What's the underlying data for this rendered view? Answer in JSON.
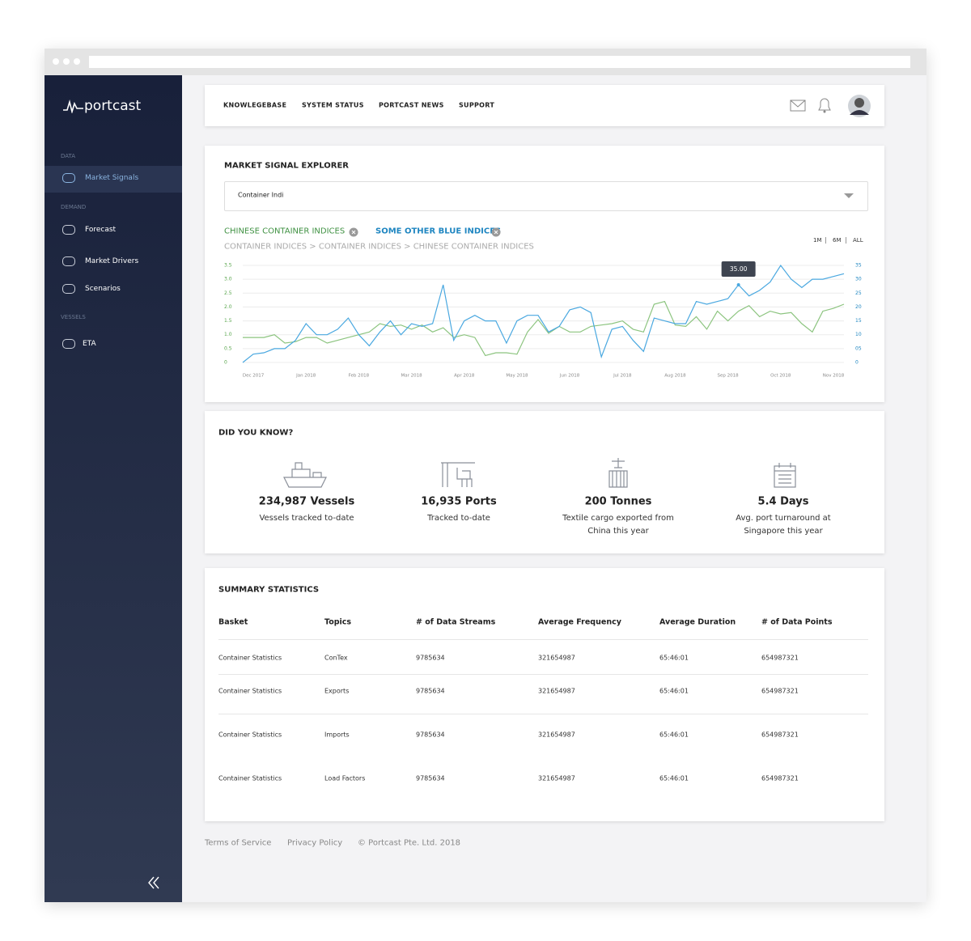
{
  "sidebar": {
    "logo": "portcast",
    "sections": [
      {
        "heading": "DATA",
        "items": [
          "Market Signals"
        ]
      },
      {
        "heading": "DEMAND",
        "items": [
          "Forecast",
          "Market Drivers",
          "Scenarios"
        ]
      },
      {
        "heading": "VESSELS",
        "items": [
          "ETA"
        ]
      }
    ]
  },
  "topnav": {
    "links": [
      "KNOWLEGEBASE",
      "SYSTEM STATUS",
      "PORTCAST NEWS",
      "SUPPORT"
    ]
  },
  "explorer": {
    "title": "MARKET SIGNAL EXPLORER",
    "search": "Container Indi",
    "breadcrumb": "CONTAINER INDICES > CONTAINER INDICES > CHINESE CONTAINER INDICES",
    "ranges": [
      "1M",
      "6M",
      "ALL"
    ]
  },
  "chart_data": {
    "type": "line",
    "tooltip": "35.00",
    "categories": [
      null,
      "Dec 2017",
      null,
      null,
      null,
      null,
      "Jan 2018",
      null,
      null,
      null,
      null,
      "Feb 2018",
      null,
      null,
      null,
      null,
      "Mar 2018",
      null,
      null,
      null,
      null,
      "Apr 2018",
      null,
      null,
      null,
      null,
      "May 2018",
      null,
      null,
      null,
      null,
      "Jun 2018",
      null,
      null,
      null,
      null,
      "Jul 2018",
      null,
      null,
      null,
      null,
      "Aug 2018",
      null,
      null,
      null,
      null,
      "Sep 2018",
      null,
      null,
      null,
      null,
      "Oct 2018",
      null,
      null,
      null,
      null,
      "Nov 2018",
      null
    ],
    "series": [
      {
        "name": "CHINESE CONTAINER INDICES",
        "color": "#8cc47f",
        "values": [
          0.9,
          0.9,
          0.9,
          1.0,
          0.7,
          0.75,
          0.9,
          0.9,
          0.7,
          0.8,
          0.9,
          1.0,
          1.1,
          1.4,
          1.3,
          1.35,
          1.2,
          1.35,
          1.1,
          1.25,
          0.9,
          1.0,
          0.9,
          0.25,
          0.35,
          0.35,
          0.3,
          1.1,
          1.55,
          1.05,
          1.3,
          1.1,
          1.1,
          1.3,
          1.35,
          1.4,
          1.5,
          1.2,
          1.1,
          2.1,
          2.2,
          1.35,
          1.3,
          1.65,
          1.2,
          1.85,
          1.5,
          1.85,
          2.05,
          1.65,
          1.85,
          1.75,
          1.8,
          1.4,
          1.1,
          1.85,
          1.95,
          2.1
        ]
      },
      {
        "name": "SOME OTHER BLUE INDICES",
        "color": "#4aa8e0",
        "axis": "y2",
        "values": [
          0,
          3,
          3.5,
          5,
          5,
          8,
          14,
          10,
          10,
          12,
          16,
          10,
          6,
          11,
          15,
          10,
          14,
          13,
          14,
          28,
          8,
          15,
          17,
          15,
          15,
          7,
          15,
          17,
          17,
          11,
          13,
          19,
          20,
          18,
          2,
          12,
          13,
          8,
          4,
          16,
          15,
          14,
          14,
          22,
          21,
          22,
          23,
          28,
          24,
          26,
          29,
          35,
          30,
          27,
          30,
          30,
          31,
          32
        ]
      }
    ],
    "ylim": [
      0,
      3.5
    ],
    "yticks": [
      0,
      {
        "value": 0.5,
        "label": "0.5"
      },
      {
        "value": 1,
        "label": "1.0"
      },
      {
        "value": 1.5,
        "label": "1.5"
      },
      {
        "value": 2,
        "label": "2.0"
      },
      {
        "value": 2.5,
        "label": "2.5"
      },
      {
        "value": 3,
        "label": "3.0"
      },
      {
        "value": 3.5,
        "label": "3.5"
      }
    ],
    "y2lim": [
      0,
      35
    ],
    "y2ticks": [
      0,
      {
        "value": 5,
        "label": "05"
      },
      10,
      15,
      20,
      25,
      30,
      35
    ],
    "grid": true
  },
  "did_you_know": {
    "title": "DID YOU KNOW?",
    "stats": [
      {
        "value": "234,987 Vessels",
        "caption": "Vessels tracked to-date"
      },
      {
        "value": "16,935 Ports",
        "caption": "Tracked to-date"
      },
      {
        "value": "200 Tonnes",
        "caption": "Textile cargo exported from China this year"
      },
      {
        "value": "5.4 Days",
        "caption": "Avg. port turnaround at Singapore this year"
      }
    ]
  },
  "summary": {
    "title": "SUMMARY STATISTICS",
    "columns": [
      "Basket",
      "Topics",
      "# of Data Streams",
      "Average Frequency",
      "Average Duration",
      "# of Data Points"
    ],
    "rows": [
      [
        "Container Statistics",
        "ConTex",
        9785634,
        321654987,
        "65:46:01",
        654987321
      ],
      [
        "Container Statistics",
        "Exports",
        9785634,
        321654987,
        "65:46:01",
        654987321
      ],
      [
        "Container Statistics",
        "Imports",
        9785634,
        321654987,
        "65:46:01",
        654987321
      ],
      [
        "Container Statistics",
        "Load Factors",
        9785634,
        321654987,
        "65:46:01",
        654987321
      ]
    ]
  },
  "footer": [
    "Terms of Service",
    "Privacy Policy",
    "© Portcast Pte. Ltd. 2018"
  ]
}
